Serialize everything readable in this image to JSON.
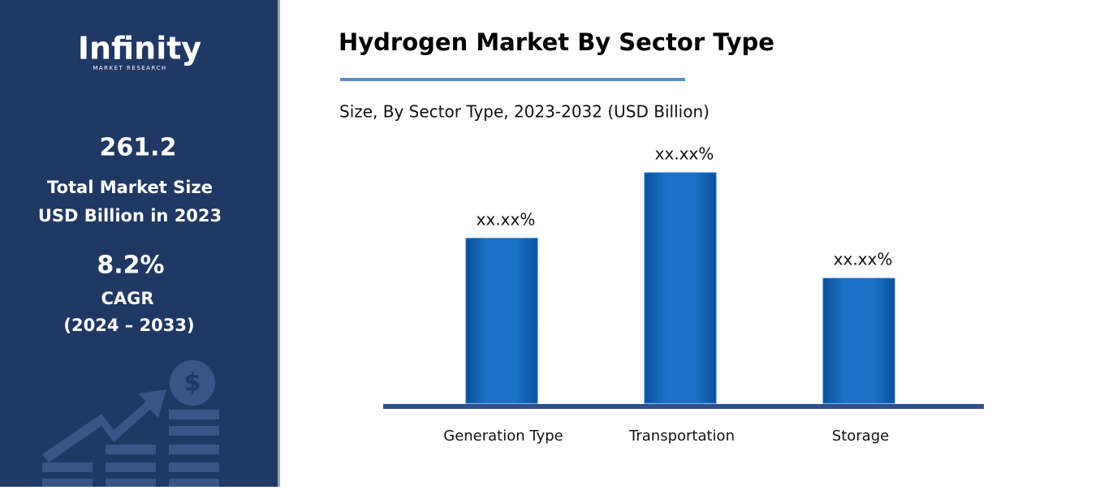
{
  "sidebar": {
    "logo": "Infinity",
    "logo_sub": "MARKET RESEARCH",
    "market_size": "261.2",
    "market_size_label": [
      "Total Market Size",
      "USD Billion in 2023"
    ],
    "cagr": "8.2%",
    "cagr_label": [
      "CAGR",
      "(2024 – 2033)"
    ]
  },
  "chart_data": {
    "type": "bar",
    "title": "Hydrogen Market By Sector Type",
    "subtitle": "Size, By Sector Type, 2023-2032 (USD Billion)",
    "categories": [
      "Generation Type",
      "Transportation",
      "Storage"
    ],
    "values": [
      31.7,
      44.3,
      24.0
    ],
    "value_labels": [
      "xx.xx%",
      "xx.xx%",
      "xx.xx%"
    ],
    "color": "#1a73c9"
  }
}
